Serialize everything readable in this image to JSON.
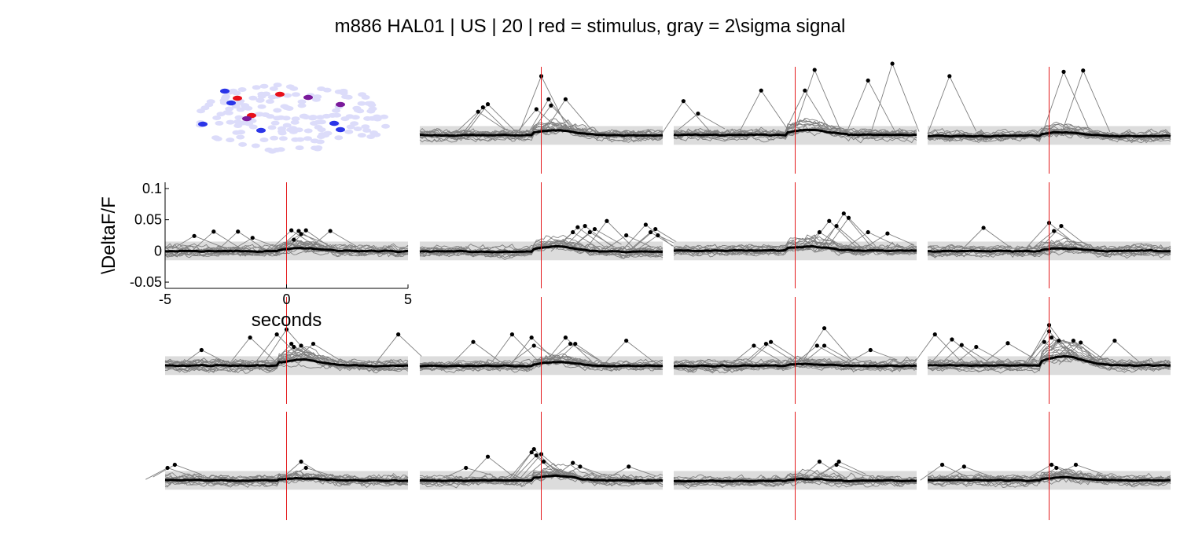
{
  "title": "m886 HAL01 | US | 20 | red = stimulus, gray = 2\\sigma signal",
  "colors": {
    "stimulus": "#e41a1c",
    "signal_band": "#dcdcdc",
    "trial_trace": "#7f7f7f",
    "mean_trace": "#000000",
    "peak_marker": "#000000",
    "roi_background": "#dcdcfa",
    "roi_blue": "#2b35e8",
    "roi_red": "#e8101a",
    "roi_purple": "#7a1a9a"
  },
  "chart_data": {
    "type": "line",
    "grid": false,
    "layout_rows": 4,
    "layout_cols": 4,
    "roi_map_panel": {
      "row": 0,
      "col": 0
    },
    "x_range": [
      -5,
      5
    ],
    "y_range": [
      -0.06,
      0.11
    ],
    "xlabel": "seconds",
    "ylabel": "\\DeltaF/F",
    "xticks": [
      -5,
      0,
      5
    ],
    "yticks": [
      -0.05,
      0,
      0.05,
      0.1
    ],
    "ytick_labels": [
      "-0.05",
      "0",
      "0.05",
      "0.1"
    ],
    "axes_panel": {
      "row": 1,
      "col": 0
    },
    "stimulus_time": 0,
    "signal_band": [
      -0.015,
      0.015
    ],
    "panels": [
      {
        "row": 0,
        "col": 1,
        "response": 0.012,
        "peaks": [
          [
            -2.6,
            0.038
          ],
          [
            -2.4,
            0.045
          ],
          [
            -2.2,
            0.05
          ],
          [
            -0.2,
            0.042
          ],
          [
            0.0,
            0.095
          ],
          [
            0.3,
            0.058
          ],
          [
            0.4,
            0.048
          ],
          [
            1.0,
            0.058
          ]
        ]
      },
      {
        "row": 0,
        "col": 2,
        "response": 0.012,
        "peaks": [
          [
            -4.6,
            0.055
          ],
          [
            -4.0,
            0.035
          ],
          [
            -1.4,
            0.072
          ],
          [
            0.4,
            0.072
          ],
          [
            0.8,
            0.105
          ],
          [
            3.0,
            0.088
          ],
          [
            4.0,
            0.115
          ]
        ]
      },
      {
        "row": 0,
        "col": 3,
        "response": 0.008,
        "peaks": [
          [
            -4.1,
            0.095
          ],
          [
            0.6,
            0.102
          ],
          [
            1.4,
            0.104
          ]
        ]
      },
      {
        "row": 1,
        "col": 0,
        "response": 0.008,
        "peaks": [
          [
            -3.8,
            0.024
          ],
          [
            -3.0,
            0.031
          ],
          [
            -2.0,
            0.031
          ],
          [
            -1.4,
            0.021
          ],
          [
            0.2,
            0.033
          ],
          [
            0.3,
            0.018
          ],
          [
            0.5,
            0.032
          ],
          [
            0.6,
            0.027
          ],
          [
            0.8,
            0.033
          ],
          [
            1.8,
            0.032
          ]
        ]
      },
      {
        "row": 1,
        "col": 1,
        "response": 0.012,
        "peaks": [
          [
            1.3,
            0.03
          ],
          [
            1.5,
            0.038
          ],
          [
            1.8,
            0.04
          ],
          [
            2.0,
            0.03
          ],
          [
            2.2,
            0.035
          ],
          [
            2.7,
            0.048
          ],
          [
            3.5,
            0.025
          ],
          [
            4.3,
            0.042
          ],
          [
            4.5,
            0.03
          ],
          [
            4.7,
            0.035
          ],
          [
            4.8,
            0.025
          ]
        ]
      },
      {
        "row": 1,
        "col": 2,
        "response": 0.01,
        "peaks": [
          [
            1.0,
            0.03
          ],
          [
            1.4,
            0.048
          ],
          [
            1.7,
            0.04
          ],
          [
            2.0,
            0.06
          ],
          [
            2.2,
            0.053
          ],
          [
            3.0,
            0.03
          ],
          [
            3.8,
            0.028
          ]
        ]
      },
      {
        "row": 1,
        "col": 3,
        "response": 0.006,
        "peaks": [
          [
            -2.7,
            0.037
          ],
          [
            0.0,
            0.045
          ],
          [
            0.5,
            0.04
          ],
          [
            0.2,
            0.032
          ]
        ]
      },
      {
        "row": 2,
        "col": 0,
        "response": 0.015,
        "peaks": [
          [
            -3.5,
            0.025
          ],
          [
            -1.5,
            0.045
          ],
          [
            -0.4,
            0.05
          ],
          [
            0.0,
            0.058
          ],
          [
            0.2,
            0.035
          ],
          [
            0.3,
            0.03
          ],
          [
            0.6,
            0.032
          ],
          [
            1.1,
            0.035
          ],
          [
            4.6,
            0.05
          ]
        ]
      },
      {
        "row": 2,
        "col": 1,
        "response": 0.008,
        "peaks": [
          [
            -2.8,
            0.038
          ],
          [
            -1.2,
            0.05
          ],
          [
            -0.4,
            0.045
          ],
          [
            -0.3,
            0.032
          ],
          [
            1.0,
            0.045
          ],
          [
            1.2,
            0.035
          ],
          [
            1.4,
            0.035
          ],
          [
            3.5,
            0.04
          ]
        ]
      },
      {
        "row": 2,
        "col": 2,
        "response": 0.005,
        "peaks": [
          [
            -1.7,
            0.032
          ],
          [
            -1.2,
            0.035
          ],
          [
            -1.0,
            0.038
          ],
          [
            0.9,
            0.032
          ],
          [
            1.2,
            0.032
          ],
          [
            1.2,
            0.06
          ],
          [
            3.1,
            0.025
          ]
        ]
      },
      {
        "row": 2,
        "col": 3,
        "response": 0.02,
        "peaks": [
          [
            -4.7,
            0.05
          ],
          [
            -4.0,
            0.042
          ],
          [
            -3.6,
            0.033
          ],
          [
            -3.0,
            0.03
          ],
          [
            -1.7,
            0.036
          ],
          [
            -0.2,
            0.038
          ],
          [
            0.0,
            0.065
          ],
          [
            0.0,
            0.055
          ],
          [
            0.1,
            0.045
          ],
          [
            0.4,
            0.04
          ],
          [
            1.0,
            0.04
          ],
          [
            1.3,
            0.037
          ],
          [
            2.7,
            0.04
          ]
        ]
      },
      {
        "row": 3,
        "col": 0,
        "response": 0.005,
        "peaks": [
          [
            -4.9,
            0.02
          ],
          [
            -4.6,
            0.025
          ],
          [
            0.6,
            0.03
          ],
          [
            0.8,
            0.02
          ]
        ]
      },
      {
        "row": 3,
        "col": 1,
        "response": 0.01,
        "peaks": [
          [
            -3.1,
            0.02
          ],
          [
            -2.2,
            0.038
          ],
          [
            -0.4,
            0.045
          ],
          [
            -0.3,
            0.05
          ],
          [
            -0.2,
            0.04
          ],
          [
            0.0,
            0.042
          ],
          [
            0.1,
            0.03
          ],
          [
            1.3,
            0.028
          ],
          [
            1.6,
            0.022
          ],
          [
            3.6,
            0.022
          ]
        ]
      },
      {
        "row": 3,
        "col": 2,
        "response": 0.005,
        "peaks": [
          [
            1.0,
            0.03
          ],
          [
            1.7,
            0.025
          ],
          [
            1.8,
            0.03
          ]
        ]
      },
      {
        "row": 3,
        "col": 3,
        "response": 0.007,
        "peaks": [
          [
            -4.4,
            0.025
          ],
          [
            -3.5,
            0.022
          ],
          [
            0.1,
            0.025
          ],
          [
            0.3,
            0.02
          ],
          [
            1.1,
            0.025
          ]
        ]
      }
    ]
  }
}
